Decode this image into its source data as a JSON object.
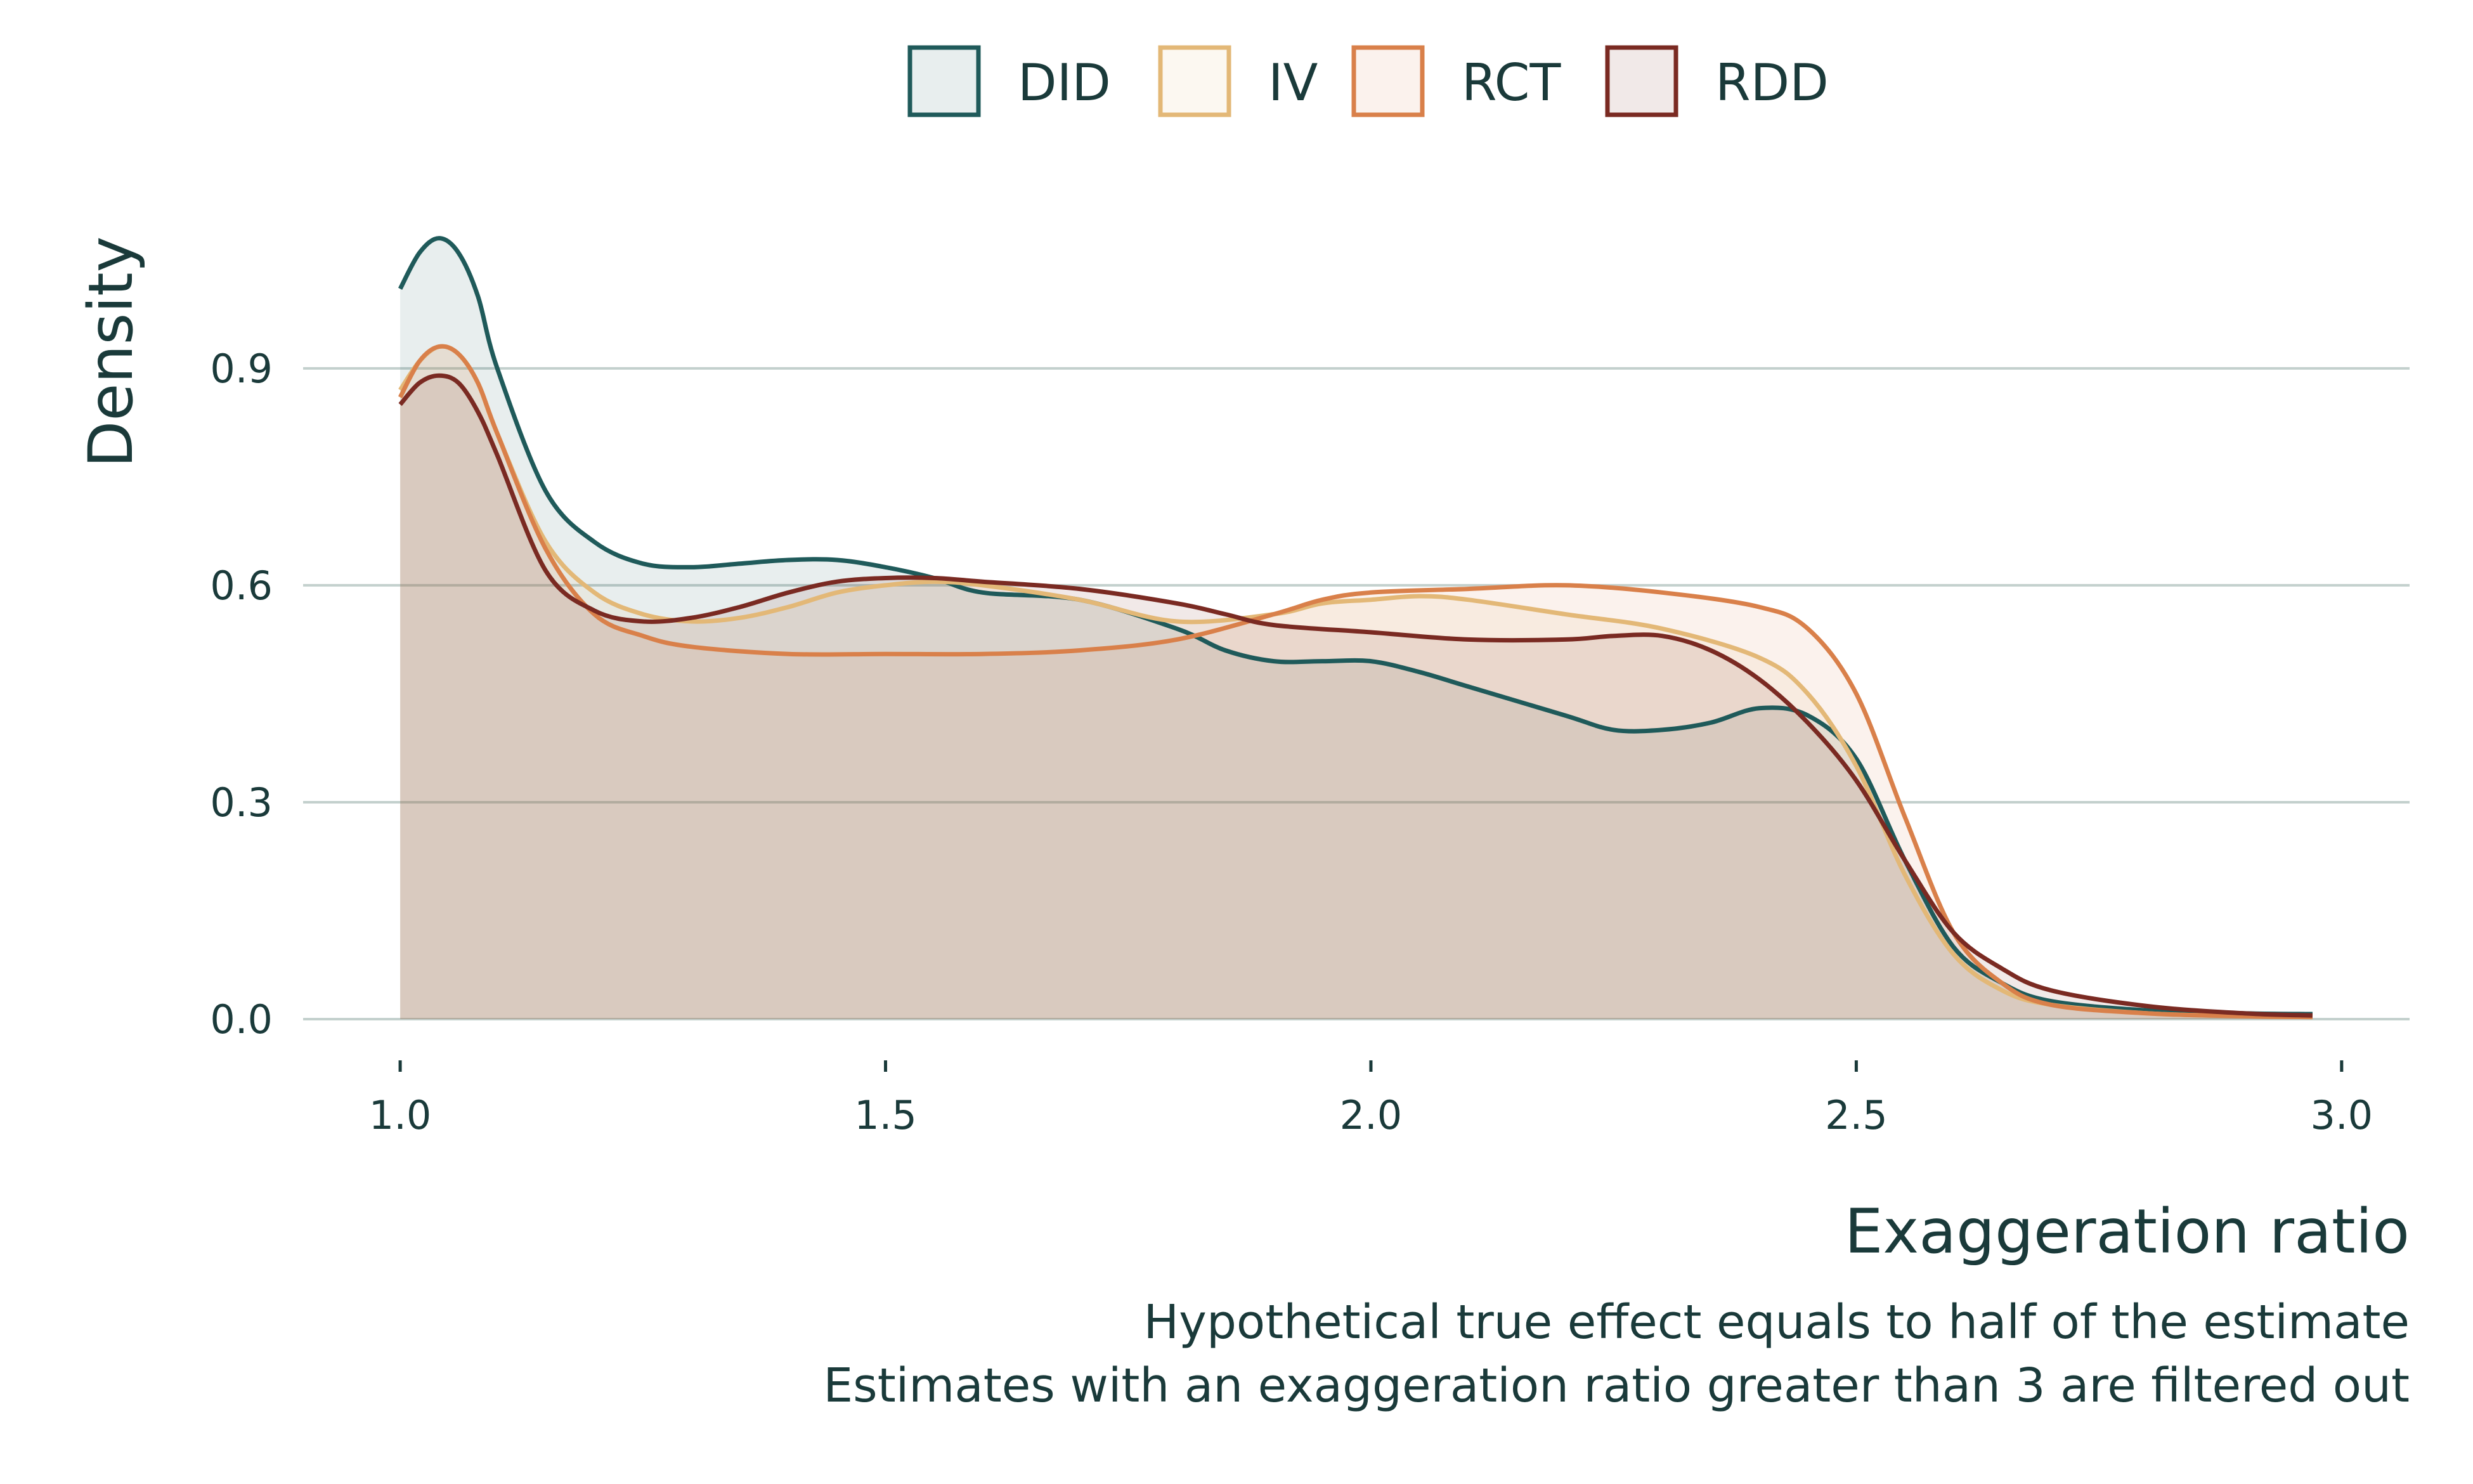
{
  "chart_data": {
    "type": "area",
    "title": "",
    "xlabel": "Exaggeration ratio",
    "ylabel": "Density",
    "caption": [
      "Hypothetical true effect equals to half of the estimate",
      "Estimates with an exaggeration ratio greater than 3 are filtered out"
    ],
    "xlim": [
      0.9,
      3.07
    ],
    "ylim": [
      0,
      1.12
    ],
    "x_ticks": [
      1.0,
      1.5,
      2.0,
      2.5,
      3.0
    ],
    "x_tick_labels": [
      "1.0",
      "1.5",
      "2.0",
      "2.5",
      "3.0"
    ],
    "y_ticks": [
      0.0,
      0.3,
      0.6,
      0.9
    ],
    "y_tick_labels": [
      "0.0",
      "0.3",
      "0.6",
      "0.9"
    ],
    "grid": "horizontal",
    "legend_position": "top",
    "series": [
      {
        "name": "DID",
        "color": "#1f5a5a",
        "points": [
          [
            1.0,
            1.01
          ],
          [
            1.02,
            1.06
          ],
          [
            1.04,
            1.08
          ],
          [
            1.06,
            1.06
          ],
          [
            1.08,
            1.0
          ],
          [
            1.1,
            0.9
          ],
          [
            1.15,
            0.73
          ],
          [
            1.2,
            0.66
          ],
          [
            1.25,
            0.63
          ],
          [
            1.3,
            0.625
          ],
          [
            1.35,
            0.63
          ],
          [
            1.4,
            0.635
          ],
          [
            1.45,
            0.635
          ],
          [
            1.5,
            0.625
          ],
          [
            1.55,
            0.61
          ],
          [
            1.6,
            0.59
          ],
          [
            1.7,
            0.58
          ],
          [
            1.8,
            0.54
          ],
          [
            1.85,
            0.51
          ],
          [
            1.9,
            0.495
          ],
          [
            1.95,
            0.495
          ],
          [
            2.0,
            0.495
          ],
          [
            2.05,
            0.48
          ],
          [
            2.1,
            0.46
          ],
          [
            2.2,
            0.42
          ],
          [
            2.25,
            0.4
          ],
          [
            2.3,
            0.4
          ],
          [
            2.35,
            0.41
          ],
          [
            2.4,
            0.43
          ],
          [
            2.45,
            0.42
          ],
          [
            2.5,
            0.36
          ],
          [
            2.55,
            0.22
          ],
          [
            2.6,
            0.1
          ],
          [
            2.65,
            0.05
          ],
          [
            2.7,
            0.025
          ],
          [
            2.8,
            0.012
          ],
          [
            2.9,
            0.008
          ],
          [
            2.97,
            0.007
          ]
        ]
      },
      {
        "name": "IV",
        "color": "#e3b877",
        "points": [
          [
            1.0,
            0.87
          ],
          [
            1.02,
            0.91
          ],
          [
            1.04,
            0.93
          ],
          [
            1.06,
            0.92
          ],
          [
            1.08,
            0.88
          ],
          [
            1.1,
            0.81
          ],
          [
            1.15,
            0.66
          ],
          [
            1.2,
            0.59
          ],
          [
            1.25,
            0.56
          ],
          [
            1.3,
            0.55
          ],
          [
            1.35,
            0.555
          ],
          [
            1.4,
            0.57
          ],
          [
            1.45,
            0.59
          ],
          [
            1.5,
            0.6
          ],
          [
            1.55,
            0.605
          ],
          [
            1.6,
            0.6
          ],
          [
            1.7,
            0.58
          ],
          [
            1.8,
            0.55
          ],
          [
            1.9,
            0.56
          ],
          [
            1.95,
            0.575
          ],
          [
            2.0,
            0.58
          ],
          [
            2.05,
            0.585
          ],
          [
            2.1,
            0.58
          ],
          [
            2.2,
            0.56
          ],
          [
            2.3,
            0.54
          ],
          [
            2.4,
            0.5
          ],
          [
            2.45,
            0.45
          ],
          [
            2.5,
            0.35
          ],
          [
            2.55,
            0.2
          ],
          [
            2.6,
            0.09
          ],
          [
            2.65,
            0.04
          ],
          [
            2.7,
            0.02
          ],
          [
            2.8,
            0.008
          ],
          [
            2.9,
            0.004
          ],
          [
            2.97,
            0.003
          ]
        ]
      },
      {
        "name": "RCT",
        "color": "#d9804a",
        "points": [
          [
            1.0,
            0.86
          ],
          [
            1.02,
            0.91
          ],
          [
            1.04,
            0.93
          ],
          [
            1.06,
            0.92
          ],
          [
            1.08,
            0.88
          ],
          [
            1.1,
            0.81
          ],
          [
            1.15,
            0.65
          ],
          [
            1.2,
            0.56
          ],
          [
            1.25,
            0.53
          ],
          [
            1.3,
            0.515
          ],
          [
            1.4,
            0.505
          ],
          [
            1.5,
            0.505
          ],
          [
            1.6,
            0.505
          ],
          [
            1.7,
            0.51
          ],
          [
            1.8,
            0.525
          ],
          [
            1.9,
            0.56
          ],
          [
            1.95,
            0.58
          ],
          [
            2.0,
            0.59
          ],
          [
            2.1,
            0.595
          ],
          [
            2.2,
            0.6
          ],
          [
            2.3,
            0.59
          ],
          [
            2.4,
            0.57
          ],
          [
            2.45,
            0.54
          ],
          [
            2.5,
            0.45
          ],
          [
            2.55,
            0.28
          ],
          [
            2.6,
            0.12
          ],
          [
            2.65,
            0.05
          ],
          [
            2.7,
            0.02
          ],
          [
            2.8,
            0.008
          ],
          [
            2.9,
            0.004
          ],
          [
            2.97,
            0.003
          ]
        ]
      },
      {
        "name": "RDD",
        "color": "#7a2a22",
        "points": [
          [
            1.0,
            0.85
          ],
          [
            1.02,
            0.88
          ],
          [
            1.04,
            0.89
          ],
          [
            1.06,
            0.88
          ],
          [
            1.08,
            0.84
          ],
          [
            1.1,
            0.78
          ],
          [
            1.15,
            0.62
          ],
          [
            1.2,
            0.565
          ],
          [
            1.25,
            0.55
          ],
          [
            1.3,
            0.555
          ],
          [
            1.35,
            0.57
          ],
          [
            1.4,
            0.59
          ],
          [
            1.45,
            0.605
          ],
          [
            1.5,
            0.61
          ],
          [
            1.55,
            0.61
          ],
          [
            1.6,
            0.605
          ],
          [
            1.7,
            0.595
          ],
          [
            1.8,
            0.575
          ],
          [
            1.85,
            0.56
          ],
          [
            1.9,
            0.545
          ],
          [
            2.0,
            0.535
          ],
          [
            2.1,
            0.525
          ],
          [
            2.2,
            0.525
          ],
          [
            2.25,
            0.53
          ],
          [
            2.3,
            0.53
          ],
          [
            2.35,
            0.51
          ],
          [
            2.4,
            0.47
          ],
          [
            2.45,
            0.41
          ],
          [
            2.5,
            0.33
          ],
          [
            2.55,
            0.22
          ],
          [
            2.6,
            0.12
          ],
          [
            2.65,
            0.07
          ],
          [
            2.7,
            0.04
          ],
          [
            2.8,
            0.018
          ],
          [
            2.9,
            0.008
          ],
          [
            2.97,
            0.005
          ]
        ]
      }
    ]
  }
}
